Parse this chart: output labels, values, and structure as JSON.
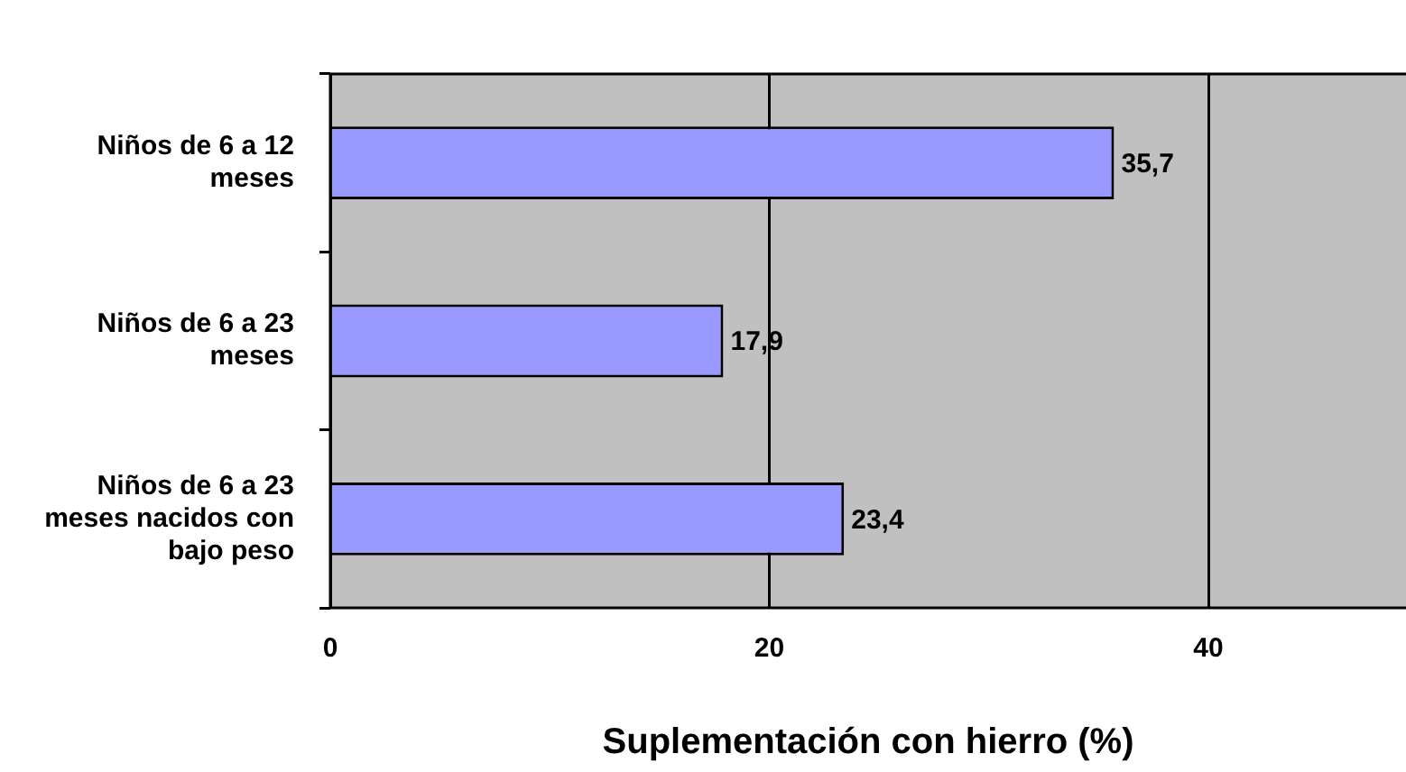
{
  "chart_data": {
    "type": "bar",
    "orientation": "horizontal",
    "xlabel": "Suplementación con hierro (%)",
    "categories": [
      "Niños de 6 a 12 meses",
      "Niños de 6 a 23 meses",
      "Niños de 6 a 23 meses nacidos con bajo peso"
    ],
    "values": [
      35.7,
      17.9,
      23.4
    ],
    "value_labels": [
      "35,7",
      "17,9",
      "23,4"
    ],
    "color": "#9999ff",
    "xlim": [
      0,
      49
    ],
    "xticks": [
      0,
      20,
      40
    ],
    "grid": "x",
    "legend": false
  }
}
